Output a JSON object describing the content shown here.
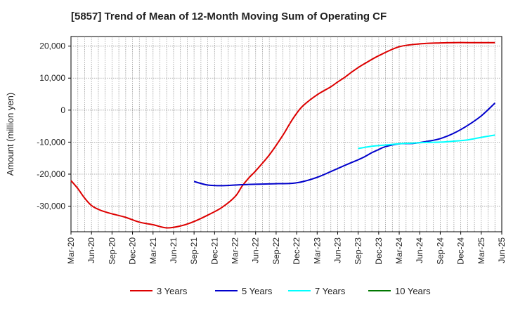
{
  "chart_data": {
    "type": "line",
    "title": "[5857]  Trend of Mean of 12-Month Moving Sum of Operating CF",
    "xlabel": "",
    "ylabel": "Amount (million yen)",
    "ylim": [
      -38000,
      23000
    ],
    "yticks": [
      20000,
      10000,
      0,
      -10000,
      -20000,
      -30000
    ],
    "ytick_labels": [
      "20,000",
      "10,000",
      "0",
      "-10,000",
      "-20,000",
      "-30,000"
    ],
    "xlim": [
      0,
      63
    ],
    "xtick_labels": [
      "Mar-20",
      "Jun-20",
      "Sep-20",
      "Dec-20",
      "Mar-21",
      "Jun-21",
      "Sep-21",
      "Dec-21",
      "Mar-22",
      "Jun-22",
      "Sep-22",
      "Dec-22",
      "Mar-23",
      "Jun-23",
      "Sep-23",
      "Dec-23",
      "Mar-24",
      "Jun-24",
      "Sep-24",
      "Dec-24",
      "Mar-25",
      "Jun-25"
    ],
    "grid": true,
    "legend_position": "bottom",
    "series": [
      {
        "name": "3 Years",
        "color": "#dd0000",
        "x": [
          0,
          1,
          2,
          3,
          4,
          5,
          6,
          8,
          10,
          12,
          14,
          16,
          18,
          20,
          22,
          24,
          25,
          26,
          27,
          29,
          31,
          32,
          33,
          34,
          36,
          38,
          39,
          40,
          41,
          42,
          43,
          45,
          48,
          51,
          54,
          56,
          58,
          60,
          61,
          62
        ],
        "values": [
          -22000,
          -24500,
          -27500,
          -29800,
          -31000,
          -31800,
          -32400,
          -33500,
          -35000,
          -35800,
          -36800,
          -36200,
          -34800,
          -32800,
          -30500,
          -27000,
          -23800,
          -21200,
          -19000,
          -14000,
          -7800,
          -4200,
          -1000,
          1500,
          4800,
          7300,
          8800,
          10200,
          11800,
          13300,
          14600,
          17000,
          19800,
          20700,
          21000,
          21100,
          21100,
          21100,
          21100,
          21100
        ]
      },
      {
        "name": "5 Years",
        "color": "#0000cc",
        "x": [
          18,
          20,
          22,
          24,
          26,
          28,
          30,
          32,
          33,
          34,
          36,
          38,
          40,
          42,
          43,
          44,
          45,
          46,
          48,
          50,
          52,
          54,
          56,
          58,
          60,
          62
        ],
        "values": [
          -22300,
          -23400,
          -23600,
          -23400,
          -23200,
          -23100,
          -23000,
          -22900,
          -22700,
          -22300,
          -21000,
          -19200,
          -17300,
          -15500,
          -14500,
          -13300,
          -12300,
          -11400,
          -10500,
          -10400,
          -9800,
          -8900,
          -7200,
          -4800,
          -1800,
          2200
        ]
      },
      {
        "name": "7 Years",
        "color": "#00ffff",
        "x": [
          42,
          44,
          46,
          48,
          50,
          52,
          54,
          56,
          58,
          60,
          62
        ],
        "values": [
          -12000,
          -11300,
          -10900,
          -10500,
          -10300,
          -10100,
          -10000,
          -9700,
          -9300,
          -8500,
          -7800
        ]
      },
      {
        "name": "10 Years",
        "color": "#007700",
        "x": [],
        "values": []
      }
    ]
  }
}
